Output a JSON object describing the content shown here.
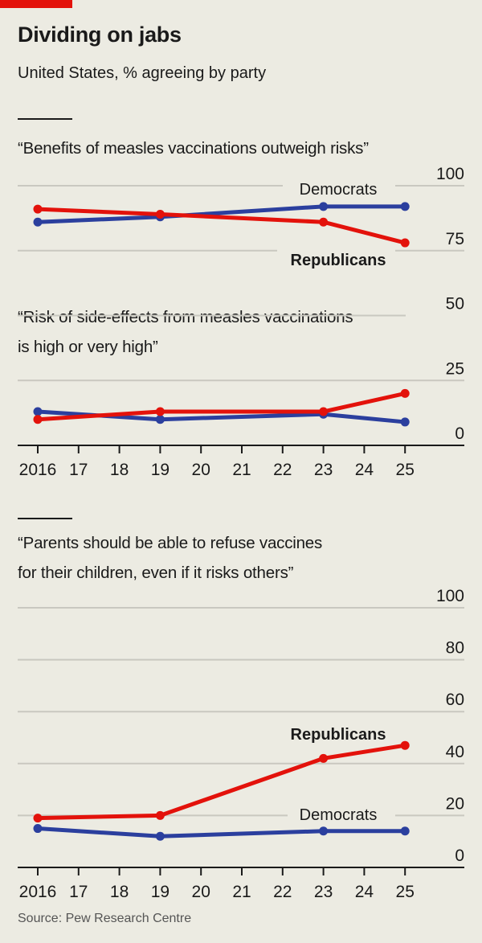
{
  "header": {
    "title": "Dividing on jabs",
    "subtitle": "United States, % agreeing by party"
  },
  "colors": {
    "republicans": "#e3120b",
    "democrats": "#2b3f9e",
    "background": "#ecebe2",
    "accent": "#e3120b"
  },
  "source": "Source: Pew Research Centre",
  "chart_data": [
    {
      "type": "line",
      "title": "“Benefits of measles vaccinations outweigh risks”",
      "x": [
        2016,
        2019,
        2023,
        2025
      ],
      "series": [
        {
          "name": "Democrats",
          "values": [
            86,
            88,
            92,
            92
          ]
        },
        {
          "name": "Republicans",
          "values": [
            91,
            89,
            86,
            78
          ]
        }
      ],
      "ylim": [
        0,
        100
      ],
      "shared_axis_with_next": true
    },
    {
      "type": "line",
      "title": "“Risk of side-effects from measles vaccinations is high or very high”",
      "x": [
        2016,
        2019,
        2023,
        2025
      ],
      "series": [
        {
          "name": "Democrats",
          "values": [
            13,
            10,
            12,
            9
          ]
        },
        {
          "name": "Republicans",
          "values": [
            10,
            13,
            13,
            20
          ]
        }
      ],
      "ylim": [
        0,
        100
      ],
      "yticks": [
        0,
        25,
        50,
        75,
        100
      ],
      "xticks": [
        "2016",
        "17",
        "18",
        "19",
        "20",
        "21",
        "22",
        "23",
        "24",
        "25"
      ],
      "grid": true
    },
    {
      "type": "line",
      "title_lines": [
        "“Parents should be able to refuse vaccines",
        "for their children, even if it risks others”"
      ],
      "x": [
        2016,
        2019,
        2023,
        2025
      ],
      "series": [
        {
          "name": "Republicans",
          "values": [
            19,
            20,
            42,
            47
          ]
        },
        {
          "name": "Democrats",
          "values": [
            15,
            12,
            14,
            14
          ]
        }
      ],
      "ylim": [
        0,
        100
      ],
      "yticks": [
        0,
        20,
        40,
        60,
        80,
        100
      ],
      "xticks": [
        "2016",
        "17",
        "18",
        "19",
        "20",
        "21",
        "22",
        "23",
        "24",
        "25"
      ],
      "grid": true
    }
  ]
}
